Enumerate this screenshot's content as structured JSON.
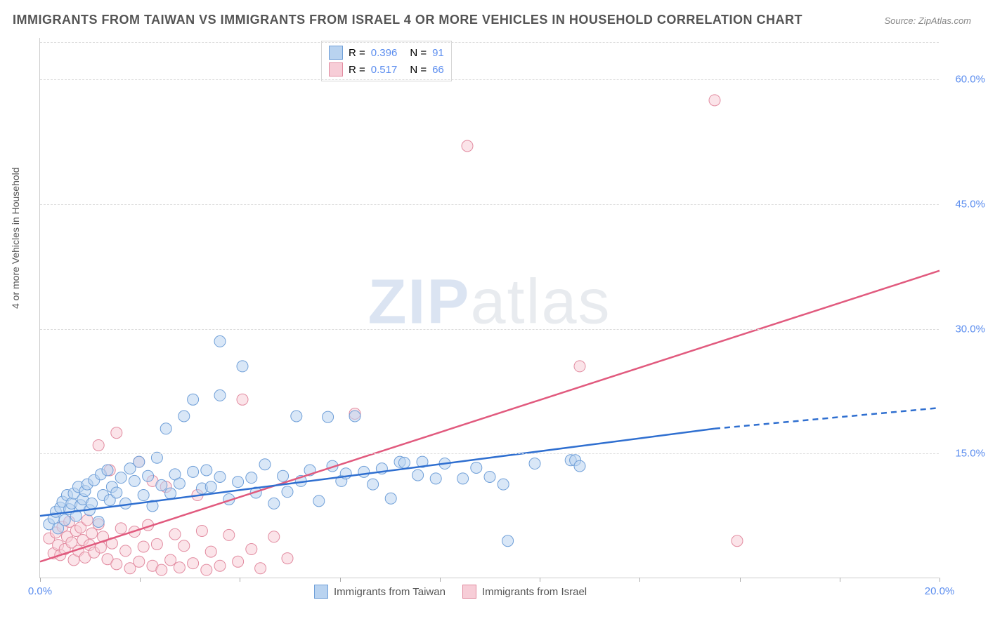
{
  "title": "IMMIGRANTS FROM TAIWAN VS IMMIGRANTS FROM ISRAEL 4 OR MORE VEHICLES IN HOUSEHOLD CORRELATION CHART",
  "source": "Source: ZipAtlas.com",
  "ylabel": "4 or more Vehicles in Household",
  "watermark_zip": "ZIP",
  "watermark_atlas": "atlas",
  "chart": {
    "type": "scatter",
    "xlim": [
      0,
      20
    ],
    "ylim": [
      0,
      65
    ],
    "xticks": [
      0,
      2.22,
      4.44,
      6.67,
      8.89,
      11.11,
      13.33,
      15.56,
      17.78,
      20
    ],
    "xtick_labels_at": {
      "0": "0.0%",
      "20": "20.0%"
    },
    "yticks": [
      15,
      30,
      45,
      60
    ],
    "ytick_labels": [
      "15.0%",
      "30.0%",
      "45.0%",
      "60.0%"
    ],
    "grid_color": "#dddddd",
    "background_color": "#ffffff",
    "series": [
      {
        "name": "Immigrants from Taiwan",
        "fill": "#b9d3f0",
        "stroke": "#6f9fd8",
        "line_color": "#2f6fd0",
        "R": "0.396",
        "N": "91",
        "trend": {
          "x1": 0,
          "y1": 7.5,
          "x2": 15,
          "y2": 18,
          "dash_from_x": 15,
          "x3": 20,
          "y3": 20.5
        },
        "points": [
          [
            0.2,
            6.5
          ],
          [
            0.3,
            7.2
          ],
          [
            0.35,
            8.0
          ],
          [
            0.4,
            6.0
          ],
          [
            0.45,
            8.5
          ],
          [
            0.5,
            9.2
          ],
          [
            0.55,
            7.0
          ],
          [
            0.6,
            10.0
          ],
          [
            0.65,
            8.3
          ],
          [
            0.7,
            9.0
          ],
          [
            0.75,
            10.2
          ],
          [
            0.8,
            7.5
          ],
          [
            0.85,
            11.0
          ],
          [
            0.9,
            8.8
          ],
          [
            0.95,
            9.5
          ],
          [
            1.0,
            10.5
          ],
          [
            1.05,
            11.3
          ],
          [
            1.1,
            8.2
          ],
          [
            1.15,
            9.0
          ],
          [
            1.2,
            11.8
          ],
          [
            1.3,
            6.8
          ],
          [
            1.35,
            12.5
          ],
          [
            1.4,
            10.0
          ],
          [
            1.5,
            13.0
          ],
          [
            1.55,
            9.4
          ],
          [
            1.6,
            11.0
          ],
          [
            1.7,
            10.3
          ],
          [
            1.8,
            12.1
          ],
          [
            1.9,
            9.0
          ],
          [
            2.0,
            13.2
          ],
          [
            2.1,
            11.7
          ],
          [
            2.2,
            14.0
          ],
          [
            2.3,
            10.0
          ],
          [
            2.4,
            12.3
          ],
          [
            2.5,
            8.7
          ],
          [
            2.6,
            14.5
          ],
          [
            2.7,
            11.2
          ],
          [
            2.8,
            18.0
          ],
          [
            2.9,
            10.2
          ],
          [
            3.0,
            12.5
          ],
          [
            3.1,
            11.4
          ],
          [
            3.2,
            19.5
          ],
          [
            3.4,
            21.5
          ],
          [
            3.4,
            12.8
          ],
          [
            3.6,
            10.8
          ],
          [
            3.7,
            13.0
          ],
          [
            3.8,
            11.0
          ],
          [
            4.0,
            22.0
          ],
          [
            4.0,
            12.2
          ],
          [
            4.0,
            28.5
          ],
          [
            4.2,
            9.5
          ],
          [
            4.4,
            11.6
          ],
          [
            4.5,
            25.5
          ],
          [
            4.7,
            12.1
          ],
          [
            4.8,
            10.3
          ],
          [
            5.0,
            13.7
          ],
          [
            5.2,
            9.0
          ],
          [
            5.4,
            12.3
          ],
          [
            5.5,
            10.4
          ],
          [
            5.7,
            19.5
          ],
          [
            5.8,
            11.7
          ],
          [
            6.0,
            13.0
          ],
          [
            6.2,
            9.3
          ],
          [
            6.4,
            19.4
          ],
          [
            6.5,
            13.5
          ],
          [
            6.7,
            11.7
          ],
          [
            6.8,
            12.6
          ],
          [
            7.0,
            19.5
          ],
          [
            7.2,
            12.8
          ],
          [
            7.4,
            11.3
          ],
          [
            7.6,
            13.2
          ],
          [
            7.8,
            9.6
          ],
          [
            8.0,
            14.0
          ],
          [
            8.1,
            13.9
          ],
          [
            8.4,
            12.4
          ],
          [
            8.5,
            14.0
          ],
          [
            8.8,
            12.0
          ],
          [
            9.0,
            13.8
          ],
          [
            9.4,
            12.0
          ],
          [
            9.7,
            13.3
          ],
          [
            10.0,
            12.2
          ],
          [
            10.3,
            11.3
          ],
          [
            10.4,
            4.5
          ],
          [
            11.0,
            13.8
          ],
          [
            11.8,
            14.2
          ],
          [
            11.9,
            14.2
          ],
          [
            12.0,
            13.5
          ]
        ]
      },
      {
        "name": "Immigrants from Israel",
        "fill": "#f7cdd7",
        "stroke": "#e28ba0",
        "line_color": "#e15a7e",
        "R": "0.517",
        "N": "66",
        "trend": {
          "x1": 0,
          "y1": 2.0,
          "x2": 20,
          "y2": 37.0
        },
        "points": [
          [
            0.2,
            4.8
          ],
          [
            0.3,
            3.0
          ],
          [
            0.35,
            5.5
          ],
          [
            0.4,
            4.0
          ],
          [
            0.45,
            2.8
          ],
          [
            0.5,
            6.2
          ],
          [
            0.55,
            3.5
          ],
          [
            0.6,
            5.0
          ],
          [
            0.65,
            6.8
          ],
          [
            0.7,
            4.3
          ],
          [
            0.75,
            2.2
          ],
          [
            0.8,
            5.7
          ],
          [
            0.85,
            3.3
          ],
          [
            0.9,
            6.1
          ],
          [
            0.95,
            4.6
          ],
          [
            1.0,
            2.5
          ],
          [
            1.05,
            7.0
          ],
          [
            1.1,
            4.0
          ],
          [
            1.15,
            5.4
          ],
          [
            1.2,
            3.1
          ],
          [
            1.3,
            16.0
          ],
          [
            1.3,
            6.5
          ],
          [
            1.35,
            3.7
          ],
          [
            1.4,
            5.0
          ],
          [
            1.5,
            2.3
          ],
          [
            1.55,
            13.0
          ],
          [
            1.6,
            4.2
          ],
          [
            1.7,
            17.5
          ],
          [
            1.7,
            1.7
          ],
          [
            1.8,
            6.0
          ],
          [
            1.9,
            3.3
          ],
          [
            2.0,
            1.2
          ],
          [
            2.1,
            5.6
          ],
          [
            2.2,
            14.0
          ],
          [
            2.2,
            2.0
          ],
          [
            2.3,
            3.8
          ],
          [
            2.4,
            6.4
          ],
          [
            2.5,
            1.5
          ],
          [
            2.5,
            11.7
          ],
          [
            2.6,
            4.1
          ],
          [
            2.7,
            1.0
          ],
          [
            2.8,
            11.0
          ],
          [
            2.9,
            2.2
          ],
          [
            3.0,
            5.3
          ],
          [
            3.1,
            1.3
          ],
          [
            3.2,
            3.9
          ],
          [
            3.4,
            1.8
          ],
          [
            3.5,
            10.0
          ],
          [
            3.6,
            5.7
          ],
          [
            3.7,
            1.0
          ],
          [
            3.8,
            3.2
          ],
          [
            4.0,
            1.5
          ],
          [
            4.2,
            5.2
          ],
          [
            4.4,
            2.0
          ],
          [
            4.5,
            21.5
          ],
          [
            4.7,
            3.5
          ],
          [
            4.9,
            1.2
          ],
          [
            5.2,
            5.0
          ],
          [
            5.5,
            2.4
          ],
          [
            7.0,
            19.8
          ],
          [
            9.5,
            52.0
          ],
          [
            12.0,
            25.5
          ],
          [
            15.0,
            57.5
          ],
          [
            15.5,
            4.5
          ]
        ]
      }
    ]
  },
  "legend_top": {
    "R_label": "R =",
    "N_label": "N ="
  },
  "legend_bottom": {
    "taiwan": "Immigrants from Taiwan",
    "israel": "Immigrants from Israel"
  }
}
